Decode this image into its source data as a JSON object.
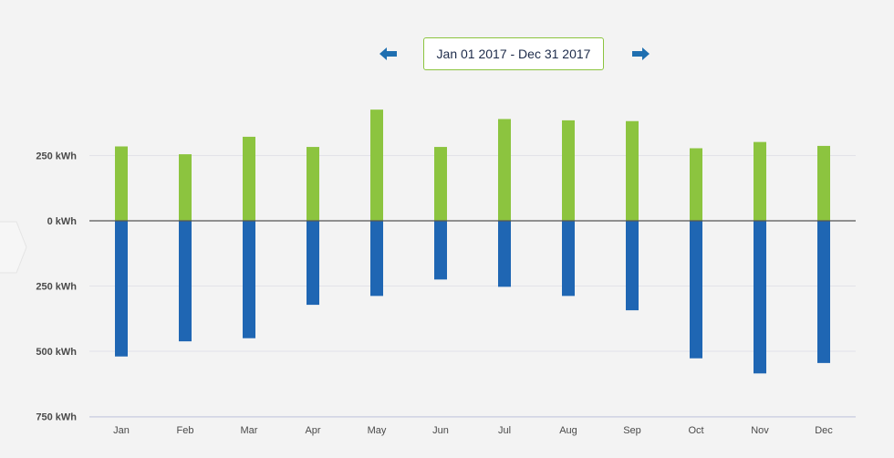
{
  "header": {
    "date_range": "Jan 01 2017 - Dec 31 2017",
    "prev_icon": "arrow-left-icon",
    "next_icon": "arrow-right-icon"
  },
  "colors": {
    "positive": "#8cc43f",
    "negative": "#1f66b3",
    "arrow": "#1f6fb0",
    "zero_line": "#555555",
    "grid": "#e2e2e8",
    "axis": "#c4c9df"
  },
  "chart_data": {
    "type": "bar",
    "title": "",
    "xlabel": "",
    "ylabel": "",
    "categories": [
      "Jan",
      "Feb",
      "Mar",
      "Apr",
      "May",
      "Jun",
      "Jul",
      "Aug",
      "Sep",
      "Oct",
      "Nov",
      "Dec"
    ],
    "series": [
      {
        "values": [
          285,
          255,
          322,
          283,
          426,
          283,
          390,
          385,
          382,
          278,
          302,
          287
        ]
      },
      {
        "values": [
          -520,
          -462,
          -450,
          -322,
          -288,
          -225,
          -253,
          -288,
          -343,
          -527,
          -585,
          -545
        ]
      }
    ],
    "yticks": [
      {
        "value": 250,
        "label": "250 kWh"
      },
      {
        "value": 0,
        "label": "0 kWh"
      },
      {
        "value": -250,
        "label": "250 kWh"
      },
      {
        "value": -500,
        "label": "500 kWh"
      },
      {
        "value": -750,
        "label": "750 kWh"
      }
    ],
    "ylim": [
      -750,
      450
    ],
    "grid": true,
    "legend": "none"
  }
}
